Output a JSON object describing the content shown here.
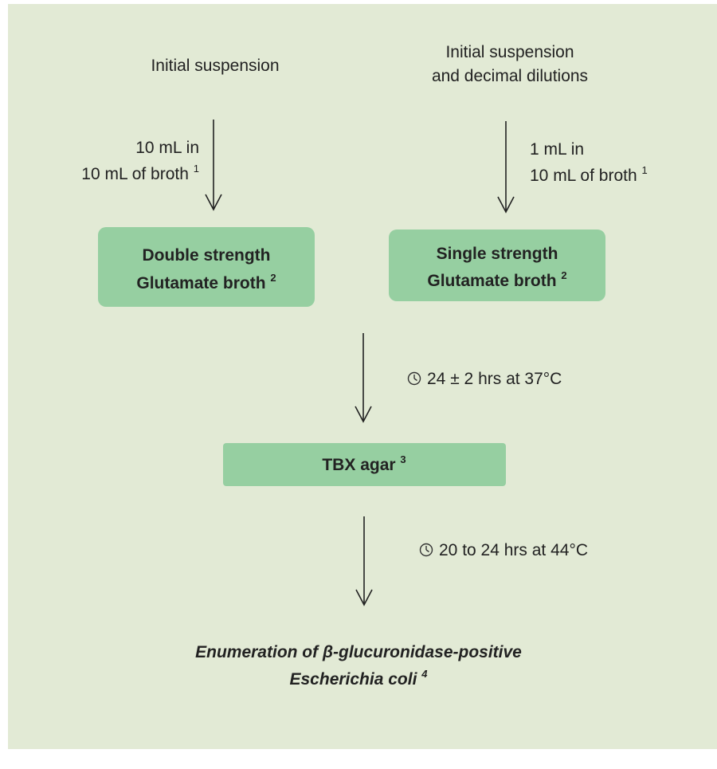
{
  "sources": [
    {
      "lines": [
        "Initial suspension"
      ]
    },
    {
      "lines": [
        "Initial suspension",
        "and decimal dilutions"
      ]
    }
  ],
  "transfers": [
    {
      "lines": [
        "10 mL in",
        "10 mL of broth"
      ],
      "note": "1"
    },
    {
      "lines": [
        "1 mL in",
        "10 mL of broth"
      ],
      "note": "1"
    }
  ],
  "broths": [
    {
      "lines": [
        "Double strength",
        "Glutamate broth"
      ],
      "note": "2"
    },
    {
      "lines": [
        "Single strength",
        "Glutamate broth"
      ],
      "note": "2"
    }
  ],
  "incubations": [
    "24 ± 2 hrs at 37°C",
    "20 to 24 hrs at 44°C"
  ],
  "agar": {
    "label": "TBX agar",
    "note": "3"
  },
  "result": {
    "lines": [
      "Enumeration of β-glucuronidase-positive",
      "Escherichia coli"
    ],
    "note": "4"
  }
}
